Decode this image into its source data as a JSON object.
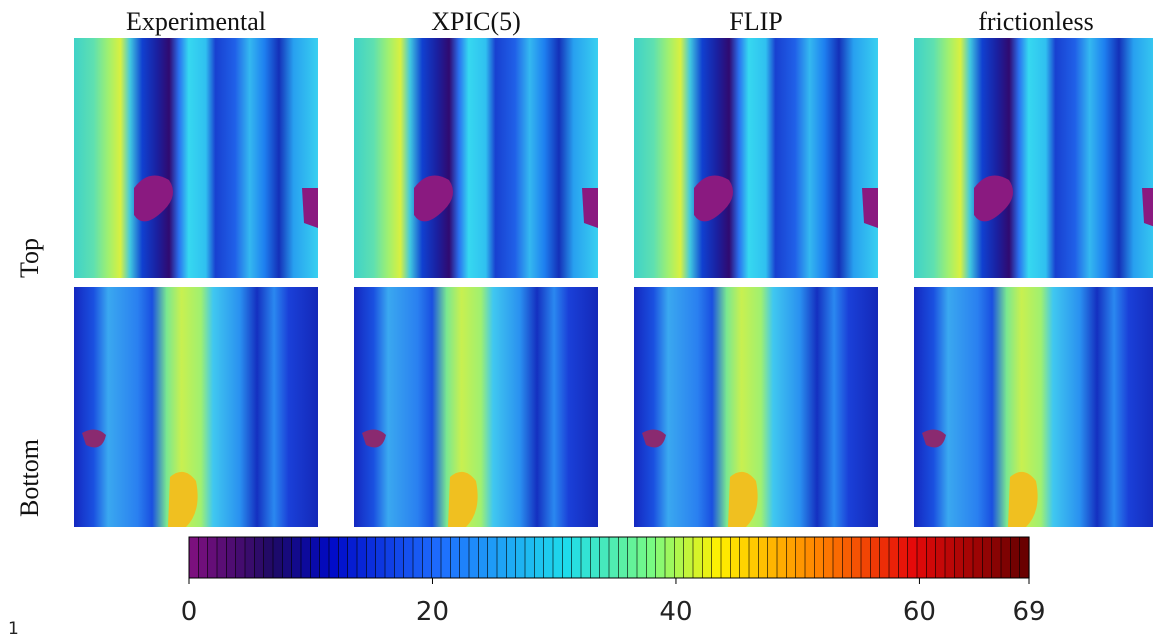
{
  "columns": [
    "Experimental",
    "XPIC(5)",
    "FLIP",
    "frictionless"
  ],
  "rows": [
    "Top",
    "Bottom"
  ],
  "colorbar": {
    "lim": [
      0,
      69
    ],
    "ticks": [
      0,
      20,
      40,
      60,
      69
    ]
  },
  "page_number": "1"
}
